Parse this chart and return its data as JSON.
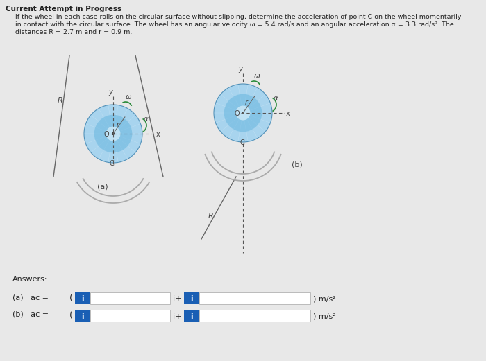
{
  "background_color": "#e8e8e8",
  "title_text": "Current Attempt in Progress",
  "problem_line1": "If the wheel in each case rolls on the circular surface without slipping, determine the acceleration of point C on the wheel momentarily",
  "problem_line2": "in contact with the circular surface. The wheel has an angular velocity ω = 5.4 rad/s and an angular acceleration α = 3.3 rad/s². The",
  "problem_line3": "distances R = 2.7 m and r = 0.9 m.",
  "wheel_color_light": "#a8d4ee",
  "wheel_color_mid": "#6db8e0",
  "wheel_color_dark": "#3a8fc0",
  "wheel_edge": "#5090b8",
  "surface_color": "#aaaaaa",
  "line_color": "#666666",
  "label_color": "#444444",
  "blue_box_color": "#1a5fb4",
  "input_box_color": "#ffffff",
  "input_box_border": "#bbbbbb",
  "text_color": "#222222",
  "fig_width": 7.0,
  "fig_height": 5.21,
  "dpi": 100
}
